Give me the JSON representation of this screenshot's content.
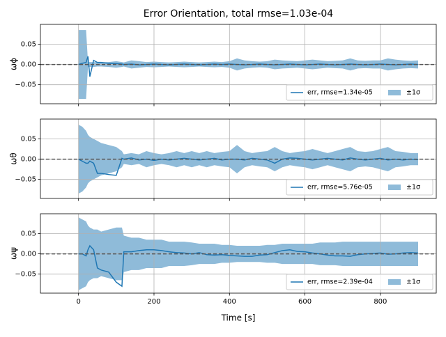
{
  "chart_data": [
    {
      "type": "line",
      "title": "Error Orientation, total rmse=1.03e-04",
      "ylabel": "ωϕ",
      "x": [
        0,
        10,
        20,
        25,
        30,
        40,
        50,
        60,
        80,
        100,
        115,
        120,
        140,
        160,
        180,
        200,
        220,
        240,
        260,
        280,
        300,
        320,
        340,
        360,
        380,
        400,
        420,
        440,
        460,
        480,
        500,
        520,
        540,
        560,
        580,
        600,
        620,
        640,
        660,
        680,
        700,
        720,
        740,
        760,
        780,
        800,
        820,
        840,
        860,
        880,
        900
      ],
      "series": [
        {
          "name": "err, rmse=1.34e-05",
          "color": "#1f77b4",
          "values": [
            0,
            0.003,
            0.005,
            0.02,
            -0.03,
            0.01,
            0.005,
            0.005,
            0.003,
            0.002,
            0.001,
            0,
            0.001,
            -0.001,
            0,
            0.001,
            0,
            -0.001,
            0,
            0.001,
            0,
            -0.001,
            0,
            0.001,
            0,
            0.001,
            0,
            -0.001,
            0,
            0.001,
            0,
            -0.001,
            0,
            0.001,
            0,
            -0.001,
            0,
            0.001,
            0,
            -0.001,
            0,
            0.001,
            0,
            -0.001,
            0,
            0.001,
            0,
            -0.001,
            0,
            0.001,
            0
          ]
        },
        {
          "name": "±1σ",
          "color": "#8fbbd9",
          "values": [
            0.085,
            0.085,
            0.085,
            0.006,
            0.006,
            0.006,
            0.005,
            0.005,
            0.006,
            0.008,
            0.006,
            0.005,
            0.01,
            0.008,
            0.006,
            0.007,
            0.006,
            0.005,
            0.006,
            0.007,
            0.006,
            0.005,
            0.006,
            0.007,
            0.006,
            0.008,
            0.015,
            0.01,
            0.008,
            0.007,
            0.008,
            0.012,
            0.01,
            0.009,
            0.008,
            0.01,
            0.012,
            0.01,
            0.008,
            0.009,
            0.01,
            0.015,
            0.01,
            0.009,
            0.01,
            0.01,
            0.015,
            0.012,
            0.01,
            0.009,
            0.01
          ]
        }
      ],
      "hline": 0,
      "xlim": [
        -101,
        948
      ],
      "xticks": [
        0,
        200,
        400,
        600,
        800
      ],
      "ylim": [
        -0.097,
        0.099
      ],
      "yticks": [
        {
          "value": -0.05,
          "label": "−0.05"
        },
        {
          "value": 0,
          "label": "0.00"
        },
        {
          "value": 0.05,
          "label": "0.05"
        }
      ],
      "grid": true,
      "legend": "lower right"
    },
    {
      "type": "line",
      "ylabel": "ωθ",
      "x": [
        0,
        10,
        20,
        25,
        30,
        40,
        50,
        60,
        80,
        100,
        115,
        120,
        140,
        160,
        180,
        200,
        220,
        240,
        260,
        280,
        300,
        320,
        340,
        360,
        380,
        400,
        420,
        440,
        460,
        480,
        500,
        520,
        540,
        560,
        580,
        600,
        620,
        640,
        660,
        680,
        700,
        720,
        740,
        760,
        780,
        800,
        820,
        840,
        860,
        880,
        900
      ],
      "series": [
        {
          "name": "err, rmse=5.76e-05",
          "color": "#1f77b4",
          "values": [
            0,
            -0.005,
            -0.01,
            -0.01,
            -0.005,
            -0.01,
            -0.035,
            -0.035,
            -0.038,
            -0.04,
            0.002,
            0,
            0.003,
            -0.002,
            0,
            -0.003,
            0,
            -0.002,
            0,
            0.002,
            0,
            -0.002,
            0,
            0.002,
            -0.002,
            0,
            0,
            -0.002,
            0.002,
            0,
            -0.002,
            -0.01,
            0,
            0.003,
            0.002,
            0,
            -0.002,
            0,
            0.002,
            0,
            -0.002,
            0.003,
            0,
            -0.002,
            0,
            0.002,
            -0.002,
            0,
            -0.002,
            0,
            -0.001
          ]
        },
        {
          "name": "±1σ",
          "color": "#8fbbd9",
          "values": [
            0.085,
            0.08,
            0.07,
            0.06,
            0.055,
            0.05,
            0.045,
            0.04,
            0.035,
            0.03,
            0.02,
            0.012,
            0.015,
            0.012,
            0.02,
            0.015,
            0.012,
            0.015,
            0.02,
            0.015,
            0.02,
            0.015,
            0.02,
            0.015,
            0.018,
            0.02,
            0.035,
            0.02,
            0.015,
            0.018,
            0.02,
            0.03,
            0.02,
            0.015,
            0.018,
            0.02,
            0.025,
            0.02,
            0.015,
            0.02,
            0.025,
            0.03,
            0.02,
            0.018,
            0.02,
            0.025,
            0.03,
            0.02,
            0.018,
            0.015,
            0.015
          ]
        }
      ],
      "hline": 0,
      "xlim": [
        -101,
        948
      ],
      "xticks": [
        0,
        200,
        400,
        600,
        800
      ],
      "ylim": [
        -0.097,
        0.099
      ],
      "yticks": [
        {
          "value": -0.05,
          "label": "−0.05"
        },
        {
          "value": 0,
          "label": "0.00"
        },
        {
          "value": 0.05,
          "label": "0.05"
        }
      ],
      "grid": true,
      "legend": "lower right"
    },
    {
      "type": "line",
      "ylabel": "ωψ",
      "xlabel": "Time [s]",
      "x": [
        0,
        10,
        20,
        25,
        30,
        40,
        50,
        60,
        80,
        100,
        115,
        120,
        140,
        160,
        180,
        200,
        220,
        240,
        260,
        280,
        300,
        320,
        340,
        360,
        380,
        400,
        420,
        440,
        460,
        480,
        500,
        520,
        540,
        560,
        580,
        600,
        620,
        640,
        660,
        680,
        700,
        720,
        740,
        760,
        780,
        800,
        820,
        840,
        860,
        880,
        900
      ],
      "series": [
        {
          "name": "err, rmse=2.39e-04",
          "color": "#1f77b4",
          "values": [
            0,
            0,
            -0.005,
            0.01,
            0.02,
            0.01,
            -0.035,
            -0.04,
            -0.045,
            -0.07,
            -0.08,
            0.005,
            0.005,
            0.008,
            0.01,
            0.01,
            0.008,
            0.005,
            0.003,
            0.002,
            0,
            0.003,
            -0.002,
            -0.003,
            -0.002,
            -0.004,
            -0.005,
            -0.006,
            -0.006,
            -0.003,
            -0.002,
            0.003,
            0.008,
            0.01,
            0.006,
            0.005,
            0.002,
            0,
            -0.003,
            -0.005,
            -0.005,
            -0.006,
            -0.002,
            0,
            0.001,
            0.002,
            -0.001,
            0,
            0.002,
            0.003,
            0.002
          ]
        },
        {
          "name": "±1σ",
          "color": "#8fbbd9",
          "values": [
            0.09,
            0.085,
            0.08,
            0.07,
            0.065,
            0.06,
            0.06,
            0.055,
            0.06,
            0.065,
            0.065,
            0.045,
            0.04,
            0.04,
            0.035,
            0.035,
            0.035,
            0.03,
            0.03,
            0.03,
            0.028,
            0.025,
            0.025,
            0.025,
            0.022,
            0.022,
            0.02,
            0.02,
            0.02,
            0.02,
            0.022,
            0.022,
            0.025,
            0.025,
            0.025,
            0.025,
            0.025,
            0.028,
            0.028,
            0.028,
            0.03,
            0.03,
            0.03,
            0.03,
            0.03,
            0.03,
            0.03,
            0.03,
            0.03,
            0.03,
            0.03
          ]
        }
      ],
      "hline": 0,
      "xlim": [
        -101,
        948
      ],
      "xticks": [
        0,
        200,
        400,
        600,
        800
      ],
      "ylim": [
        -0.097,
        0.099
      ],
      "yticks": [
        {
          "value": -0.05,
          "label": "−0.05"
        },
        {
          "value": 0,
          "label": "0.00"
        },
        {
          "value": 0.05,
          "label": "0.05"
        }
      ],
      "grid": true,
      "legend": "lower right"
    }
  ]
}
